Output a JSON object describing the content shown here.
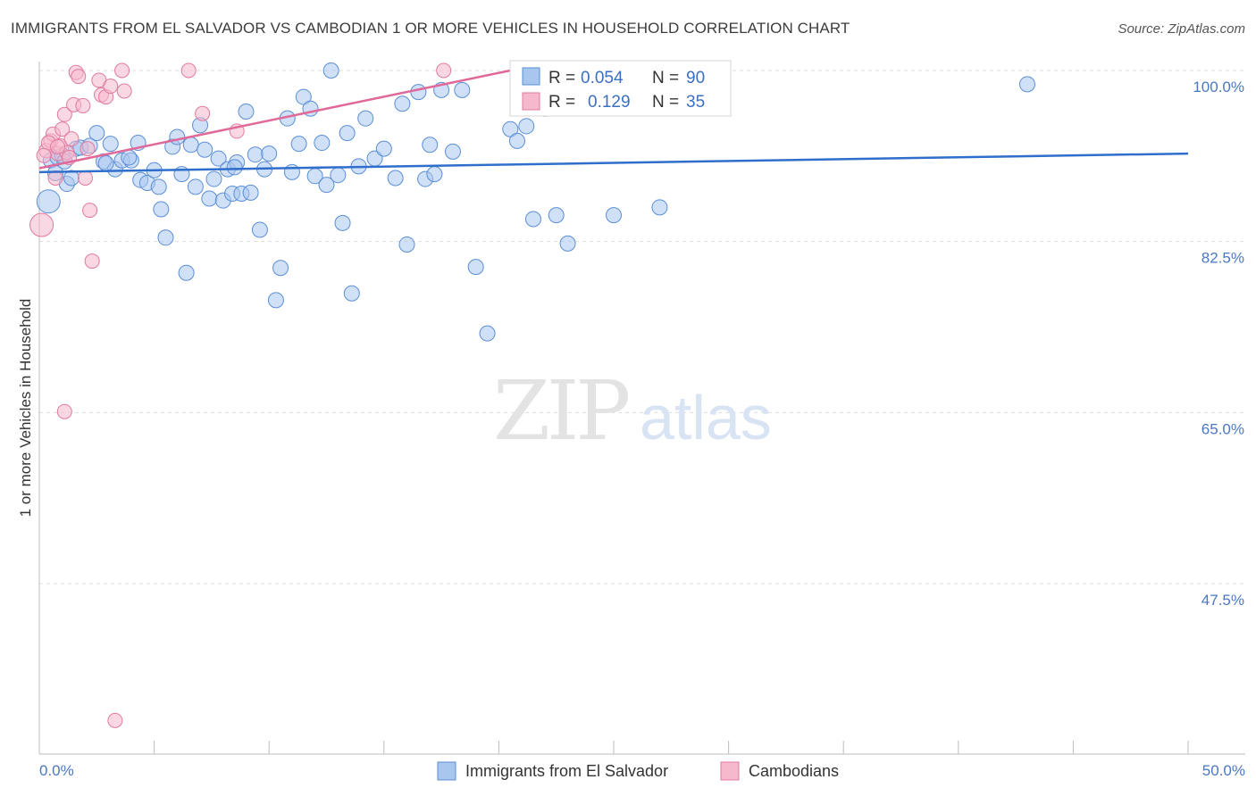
{
  "title": "IMMIGRANTS FROM EL SALVADOR VS CAMBODIAN 1 OR MORE VEHICLES IN HOUSEHOLD CORRELATION CHART",
  "source": "Source: ZipAtlas.com",
  "watermark": {
    "zip": "ZIP",
    "atlas": "atlas"
  },
  "colors": {
    "blue": "#5b8fd6",
    "blue_fill": "#a9c6ee",
    "pink": "#e07aa0",
    "pink_fill": "#f5b8cc",
    "grid": "#dddddd",
    "axis_text": "#4a78c2"
  },
  "chart_data": {
    "type": "scatter",
    "title": "IMMIGRANTS FROM EL SALVADOR VS CAMBODIAN 1 OR MORE VEHICLES IN HOUSEHOLD CORRELATION CHART",
    "xlabel": "",
    "ylabel": "1 or more Vehicles in Household",
    "xlim": [
      0,
      50
    ],
    "ylim": [
      30,
      101.5
    ],
    "x_tick_labels": [
      "0.0%",
      "50.0%"
    ],
    "y_ticks": [
      47.5,
      65.0,
      82.5,
      100.0
    ],
    "y_tick_labels": [
      "47.5%",
      "65.0%",
      "82.5%",
      "100.0%"
    ],
    "legend": [
      {
        "name": "Immigrants from El Salvador",
        "r_label": "R =",
        "r": "0.054",
        "n_label": "N =",
        "n": "90"
      },
      {
        "name": "Cambodians",
        "r_label": "R =",
        "r": "0.129",
        "n_label": "N =",
        "n": "35"
      }
    ],
    "series": [
      {
        "name": "Immigrants from El Salvador",
        "trend": {
          "x": [
            0,
            50
          ],
          "y": [
            89.6,
            91.5
          ]
        },
        "points": [
          [
            0.4,
            86.6
          ],
          [
            0.5,
            90.8
          ],
          [
            0.8,
            91.1
          ],
          [
            1.0,
            91.3
          ],
          [
            1.1,
            90.7
          ],
          [
            1.2,
            88.4
          ],
          [
            1.4,
            89.0
          ],
          [
            1.6,
            92.0
          ],
          [
            1.8,
            92.1
          ],
          [
            2.2,
            92.3
          ],
          [
            2.5,
            93.6
          ],
          [
            2.8,
            90.7
          ],
          [
            3.1,
            92.5
          ],
          [
            3.3,
            89.9
          ],
          [
            3.6,
            90.8
          ],
          [
            4.0,
            90.8
          ],
          [
            4.3,
            92.6
          ],
          [
            4.4,
            88.8
          ],
          [
            4.7,
            88.5
          ],
          [
            5.0,
            89.8
          ],
          [
            5.2,
            88.1
          ],
          [
            5.3,
            85.8
          ],
          [
            5.5,
            82.9
          ],
          [
            5.8,
            92.2
          ],
          [
            6.0,
            93.2
          ],
          [
            6.2,
            89.4
          ],
          [
            6.4,
            79.3
          ],
          [
            6.6,
            92.4
          ],
          [
            6.8,
            88.1
          ],
          [
            7.0,
            94.4
          ],
          [
            7.2,
            91.9
          ],
          [
            7.4,
            86.9
          ],
          [
            7.6,
            88.9
          ],
          [
            7.8,
            91.0
          ],
          [
            8.0,
            86.7
          ],
          [
            8.2,
            89.9
          ],
          [
            8.4,
            87.4
          ],
          [
            8.6,
            90.6
          ],
          [
            8.8,
            87.4
          ],
          [
            9.0,
            95.8
          ],
          [
            9.2,
            87.5
          ],
          [
            9.4,
            91.4
          ],
          [
            9.6,
            83.7
          ],
          [
            9.8,
            89.9
          ],
          [
            10.0,
            91.5
          ],
          [
            10.3,
            76.5
          ],
          [
            10.5,
            79.8
          ],
          [
            10.8,
            95.1
          ],
          [
            11.0,
            89.6
          ],
          [
            11.3,
            92.5
          ],
          [
            11.5,
            97.3
          ],
          [
            11.8,
            96.1
          ],
          [
            12.0,
            89.2
          ],
          [
            12.3,
            92.6
          ],
          [
            12.5,
            88.3
          ],
          [
            12.7,
            100.0
          ],
          [
            13.0,
            89.3
          ],
          [
            13.2,
            84.4
          ],
          [
            13.4,
            93.6
          ],
          [
            13.6,
            77.2
          ],
          [
            13.9,
            90.2
          ],
          [
            14.2,
            95.1
          ],
          [
            14.6,
            91.0
          ],
          [
            15.0,
            92.0
          ],
          [
            15.5,
            89.0
          ],
          [
            15.8,
            96.6
          ],
          [
            16.0,
            82.2
          ],
          [
            16.5,
            97.8
          ],
          [
            16.8,
            88.9
          ],
          [
            17.0,
            92.4
          ],
          [
            17.2,
            89.4
          ],
          [
            17.5,
            98.0
          ],
          [
            18.0,
            91.7
          ],
          [
            18.4,
            98.0
          ],
          [
            19.0,
            79.9
          ],
          [
            19.5,
            73.1
          ],
          [
            20.5,
            94.0
          ],
          [
            20.8,
            92.8
          ],
          [
            21.2,
            94.3
          ],
          [
            21.5,
            84.8
          ],
          [
            22.0,
            96.1
          ],
          [
            22.5,
            85.2
          ],
          [
            23.0,
            82.3
          ],
          [
            25.0,
            85.2
          ],
          [
            27.0,
            86.0
          ],
          [
            43.0,
            98.6
          ],
          [
            0.7,
            89.5
          ],
          [
            2.9,
            90.5
          ],
          [
            3.9,
            91.1
          ],
          [
            8.5,
            90.1
          ]
        ]
      },
      {
        "name": "Cambodians",
        "trend": {
          "x": [
            0,
            20.5
          ],
          "y": [
            90.0,
            100.0
          ]
        },
        "points": [
          [
            0.1,
            84.2
          ],
          [
            0.3,
            91.8
          ],
          [
            0.5,
            92.8
          ],
          [
            0.6,
            93.5
          ],
          [
            0.7,
            89.0
          ],
          [
            0.8,
            91.5
          ],
          [
            0.9,
            92.3
          ],
          [
            1.0,
            94.0
          ],
          [
            1.1,
            95.5
          ],
          [
            1.1,
            65.1
          ],
          [
            1.2,
            91.6
          ],
          [
            1.4,
            93.0
          ],
          [
            1.5,
            96.5
          ],
          [
            1.6,
            99.8
          ],
          [
            1.7,
            99.4
          ],
          [
            1.9,
            96.4
          ],
          [
            2.0,
            89.0
          ],
          [
            2.2,
            85.7
          ],
          [
            2.3,
            80.5
          ],
          [
            2.6,
            99.0
          ],
          [
            2.7,
            97.5
          ],
          [
            2.9,
            97.3
          ],
          [
            3.1,
            98.4
          ],
          [
            3.3,
            33.5
          ],
          [
            3.6,
            100.0
          ],
          [
            3.7,
            97.9
          ],
          [
            6.5,
            100.0
          ],
          [
            7.1,
            95.6
          ],
          [
            8.6,
            93.8
          ],
          [
            17.6,
            100.0
          ],
          [
            0.4,
            92.6
          ],
          [
            0.8,
            92.2
          ],
          [
            1.3,
            91.1
          ],
          [
            2.1,
            92.0
          ],
          [
            0.2,
            91.3
          ]
        ]
      }
    ]
  }
}
